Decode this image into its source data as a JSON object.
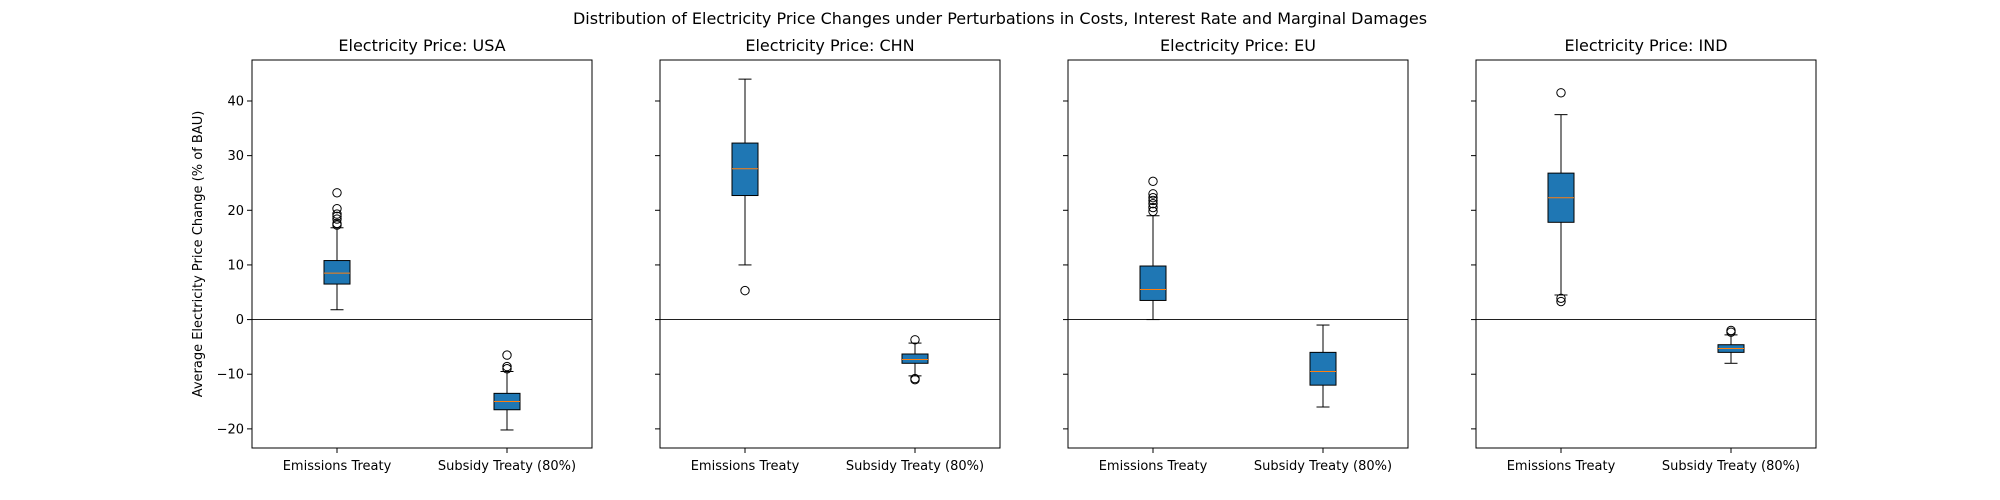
{
  "suptitle": "Distribution of Electricity Price Changes under Perturbations in Costs, Interest Rate and Marginal Damages",
  "chart_data": {
    "type": "box",
    "ylabel": "Average Electricity Price Change (% of BAU)",
    "ylim": [
      -23.5,
      47.5
    ],
    "yticks": [
      -20,
      -10,
      0,
      10,
      20,
      30,
      40
    ],
    "ytick_labels": [
      "−20",
      "−10",
      "0",
      "10",
      "20",
      "30",
      "40"
    ],
    "reference_line_y": 0,
    "shared_y": true,
    "categories": [
      "Emissions Treaty",
      "Subsidy Treaty (80%)"
    ],
    "box_color": "#1f77b4",
    "median_color": "#ff7f0e",
    "panels": [
      {
        "title": "Electricity Price: USA",
        "boxes": [
          {
            "category": "Emissions Treaty",
            "q1": 6.5,
            "median": 8.5,
            "q3": 10.8,
            "whisker_low": 1.8,
            "whisker_high": 16.8,
            "outliers": [
              17.3,
              17.6,
              18.4,
              18.9,
              19.3,
              20.3,
              23.2
            ]
          },
          {
            "category": "Subsidy Treaty (80%)",
            "q1": -16.5,
            "median": -15.0,
            "q3": -13.5,
            "whisker_low": -20.2,
            "whisker_high": -9.5,
            "outliers": [
              -9.0,
              -8.6,
              -6.5
            ]
          }
        ]
      },
      {
        "title": "Electricity Price: CHN",
        "boxes": [
          {
            "category": "Emissions Treaty",
            "q1": 22.7,
            "median": 27.6,
            "q3": 32.3,
            "whisker_low": 10.0,
            "whisker_high": 44.0,
            "outliers": [
              5.3
            ]
          },
          {
            "category": "Subsidy Treaty (80%)",
            "q1": -8.0,
            "median": -7.3,
            "q3": -6.3,
            "whisker_low": -10.3,
            "whisker_high": -4.3,
            "outliers": [
              -3.7,
              -10.8,
              -11.0
            ]
          }
        ]
      },
      {
        "title": "Electricity Price: EU",
        "boxes": [
          {
            "category": "Emissions Treaty",
            "q1": 3.5,
            "median": 5.5,
            "q3": 9.8,
            "whisker_low": 0.0,
            "whisker_high": 19.0,
            "outliers": [
              19.8,
              20.5,
              21.2,
              21.8,
              22.3,
              23.0,
              25.3
            ]
          },
          {
            "category": "Subsidy Treaty (80%)",
            "q1": -12.0,
            "median": -9.5,
            "q3": -6.0,
            "whisker_low": -16.0,
            "whisker_high": -1.0,
            "outliers": []
          }
        ]
      },
      {
        "title": "Electricity Price: IND",
        "boxes": [
          {
            "category": "Emissions Treaty",
            "q1": 17.8,
            "median": 22.3,
            "q3": 26.8,
            "whisker_low": 4.5,
            "whisker_high": 37.5,
            "outliers": [
              3.3,
              3.9,
              41.5
            ]
          },
          {
            "category": "Subsidy Treaty (80%)",
            "q1": -6.0,
            "median": -5.3,
            "q3": -4.6,
            "whisker_low": -8.0,
            "whisker_high": -2.8,
            "outliers": [
              -2.0,
              -2.3
            ]
          }
        ]
      }
    ]
  }
}
